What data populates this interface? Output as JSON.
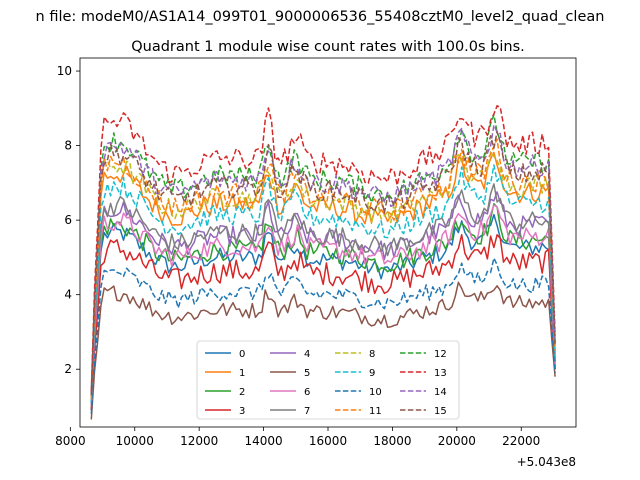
{
  "chart_data": {
    "type": "line",
    "suptitle": "n file: modeM0/AS1A14_099T01_9000006536_55408cztM0_level2_quad_clean",
    "title": "Quadrant 1 module wise count rates with 100.0s bins.",
    "xlabel": "",
    "ylabel": "",
    "x_offset_label": "+5.043e8",
    "xlim": [
      8300,
      23700
    ],
    "ylim": [
      0.45,
      10.35
    ],
    "x_ticks": [
      8000,
      10000,
      12000,
      14000,
      16000,
      18000,
      20000,
      22000
    ],
    "y_ticks": [
      2,
      4,
      6,
      8,
      10
    ],
    "x_start": 8650,
    "x_end": 23050,
    "bin": 100,
    "legend_position": "lower center",
    "grid": false,
    "series": [
      {
        "name": "0",
        "color": "#1f77b4",
        "dash": "solid",
        "start": 0.9,
        "level": 5.3,
        "end": 2.0,
        "amp": 0.25
      },
      {
        "name": "1",
        "color": "#ff7f0e",
        "dash": "solid",
        "start": 1.2,
        "level": 6.8,
        "end": 2.4,
        "amp": 0.3
      },
      {
        "name": "2",
        "color": "#2ca02c",
        "dash": "solid",
        "start": 1.0,
        "level": 5.5,
        "end": 2.1,
        "amp": 0.28
      },
      {
        "name": "3",
        "color": "#d62728",
        "dash": "solid",
        "start": 0.9,
        "level": 4.9,
        "end": 2.0,
        "amp": 0.32
      },
      {
        "name": "4",
        "color": "#9467bd",
        "dash": "solid",
        "start": 1.1,
        "level": 5.9,
        "end": 2.2,
        "amp": 0.28
      },
      {
        "name": "5",
        "color": "#8c564b",
        "dash": "solid",
        "start": 0.65,
        "level": 3.8,
        "end": 1.8,
        "amp": 0.22
      },
      {
        "name": "6",
        "color": "#e377c2",
        "dash": "solid",
        "start": 1.0,
        "level": 5.6,
        "end": 2.1,
        "amp": 0.28
      },
      {
        "name": "7",
        "color": "#7f7f7f",
        "dash": "solid",
        "start": 1.1,
        "level": 6.0,
        "end": 2.2,
        "amp": 0.28
      },
      {
        "name": "8",
        "color": "#bcbd22",
        "dash": "dashed",
        "start": 1.2,
        "level": 7.0,
        "end": 2.5,
        "amp": 0.28
      },
      {
        "name": "9",
        "color": "#17becf",
        "dash": "dashed",
        "start": 1.1,
        "level": 6.5,
        "end": 2.3,
        "amp": 0.28
      },
      {
        "name": "10",
        "color": "#1f77b4",
        "dash": "dashed",
        "start": 0.8,
        "level": 4.3,
        "end": 1.9,
        "amp": 0.22
      },
      {
        "name": "11",
        "color": "#ff7f0e",
        "dash": "dashed",
        "start": 1.2,
        "level": 7.1,
        "end": 2.5,
        "amp": 0.3
      },
      {
        "name": "12",
        "color": "#2ca02c",
        "dash": "dashed",
        "start": 1.3,
        "level": 7.6,
        "end": 2.7,
        "amp": 0.3
      },
      {
        "name": "13",
        "color": "#d62728",
        "dash": "dashed",
        "start": 1.4,
        "level": 8.1,
        "end": 2.9,
        "amp": 0.32
      },
      {
        "name": "14",
        "color": "#9467bd",
        "dash": "dashed",
        "start": 1.3,
        "level": 7.5,
        "end": 2.7,
        "amp": 0.3
      },
      {
        "name": "15",
        "color": "#8c564b",
        "dash": "dashed",
        "start": 1.3,
        "level": 7.3,
        "end": 2.6,
        "amp": 0.3
      }
    ]
  }
}
